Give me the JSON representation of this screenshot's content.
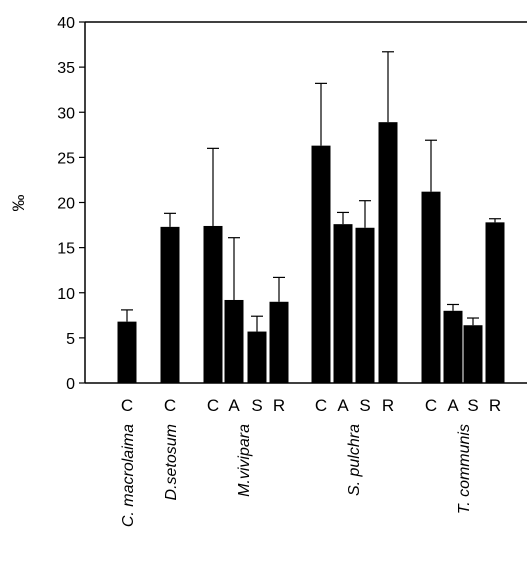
{
  "chart_data": {
    "type": "bar",
    "title": "",
    "xlabel": "",
    "ylabel": "‰",
    "ylim": [
      0,
      40
    ],
    "yticks": [
      0,
      5,
      10,
      15,
      20,
      25,
      30,
      35,
      40
    ],
    "grid": false,
    "legend": "none",
    "bar_color": "#000000",
    "groups": [
      {
        "name": "C. macrolaima",
        "bars": [
          {
            "category": "C",
            "value": 6.8,
            "error": 1.3
          }
        ]
      },
      {
        "name": "D.setosum",
        "bars": [
          {
            "category": "C",
            "value": 17.3,
            "error": 1.5
          }
        ]
      },
      {
        "name": "M.vivipara",
        "bars": [
          {
            "category": "C",
            "value": 17.4,
            "error": 8.6
          },
          {
            "category": "A",
            "value": 9.2,
            "error": 6.9
          },
          {
            "category": "S",
            "value": 5.7,
            "error": 1.7
          },
          {
            "category": "R",
            "value": 9.0,
            "error": 2.7
          }
        ]
      },
      {
        "name": "S. pulchra",
        "bars": [
          {
            "category": "C",
            "value": 26.3,
            "error": 6.9
          },
          {
            "category": "A",
            "value": 17.6,
            "error": 1.3
          },
          {
            "category": "S",
            "value": 17.2,
            "error": 3.0
          },
          {
            "category": "R",
            "value": 28.9,
            "error": 7.8
          }
        ]
      },
      {
        "name": "T. communis",
        "bars": [
          {
            "category": "C",
            "value": 21.2,
            "error": 5.7
          },
          {
            "category": "A",
            "value": 8.0,
            "error": 0.7
          },
          {
            "category": "S",
            "value": 6.4,
            "error": 0.8
          },
          {
            "category": "R",
            "value": 17.8,
            "error": 0.4
          }
        ]
      }
    ]
  }
}
